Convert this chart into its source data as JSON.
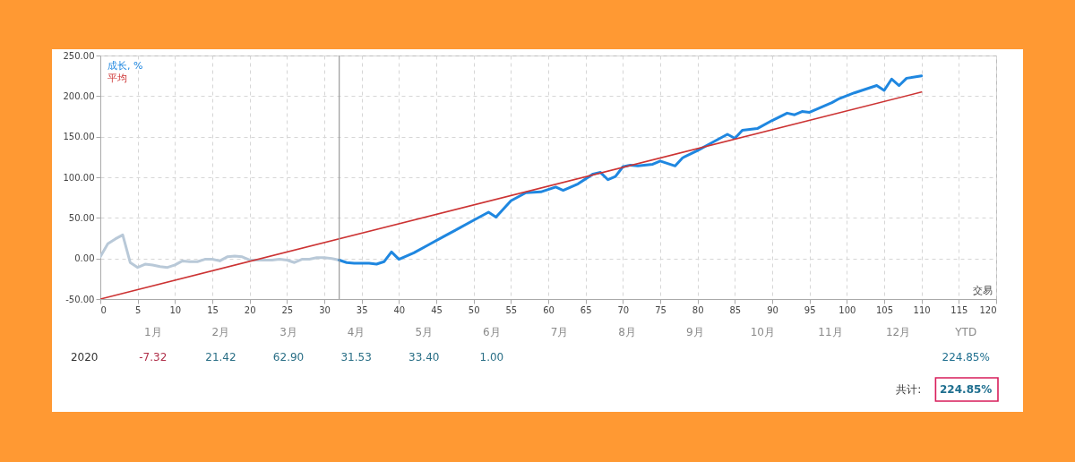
{
  "chart_data": [
    {
      "type": "line",
      "xlabel": "交易",
      "xlim": [
        0,
        120
      ],
      "ylim": [
        -50,
        250
      ],
      "xticks": [
        0,
        5,
        10,
        15,
        20,
        25,
        30,
        35,
        40,
        45,
        50,
        55,
        60,
        65,
        70,
        75,
        80,
        85,
        90,
        95,
        100,
        105,
        110,
        115,
        120
      ],
      "yticks": [
        {
          "value": -50,
          "label": "-50.00"
        },
        {
          "value": 0,
          "label": "0.00"
        },
        {
          "value": 50,
          "label": "50.00"
        },
        {
          "value": 100,
          "label": "100.00"
        },
        {
          "value": 150,
          "label": "150.00"
        },
        {
          "value": 200,
          "label": "200.00"
        },
        {
          "value": 250,
          "label": "250.00"
        }
      ],
      "grid": true,
      "legend": "top left",
      "marker": "none",
      "line_style": "solid",
      "ref_lines": [
        {
          "axis": "x",
          "value": 32,
          "color": "#9a9a9a"
        }
      ],
      "series": [
        {
          "color": "#b9c9d8",
          "x": [
            0,
            1,
            2,
            3,
            4,
            5,
            6,
            7,
            8,
            9,
            10,
            11,
            12,
            13,
            14,
            15,
            16,
            17,
            18,
            19,
            20,
            21,
            22,
            23,
            24,
            25,
            26,
            27,
            28,
            29,
            30,
            31,
            32
          ],
          "values": [
            2,
            18,
            24,
            29,
            -5,
            -11,
            -7,
            -8,
            -10,
            -11,
            -8,
            -3,
            -4,
            -4,
            -1,
            -1,
            -3,
            2,
            3,
            2,
            -2,
            -2,
            -2,
            -2,
            -1,
            -2,
            -5,
            -1,
            -1,
            1,
            1,
            0,
            -2
          ]
        },
        {
          "name": "成长, %",
          "color": "#1f87e0",
          "x": [
            32,
            33,
            34,
            35,
            36,
            37,
            38,
            39,
            40,
            42,
            44,
            46,
            48,
            50,
            52,
            53,
            55,
            57,
            59,
            61,
            62,
            64,
            66,
            67,
            68,
            69,
            70,
            71,
            72,
            74,
            75,
            77,
            78,
            80,
            82,
            84,
            85,
            86,
            88,
            90,
            92,
            93,
            94,
            95,
            98,
            99,
            101,
            104,
            105,
            106,
            107,
            108,
            110
          ],
          "values": [
            -2,
            -5,
            -6,
            -6,
            -6,
            -7,
            -4,
            8,
            -1,
            7,
            17,
            27,
            37,
            47,
            57,
            51,
            71,
            81,
            82,
            88,
            84,
            92,
            104,
            106,
            97,
            101,
            113,
            115,
            114,
            116,
            120,
            114,
            124,
            133,
            143,
            153,
            148,
            158,
            160,
            170,
            179,
            177,
            181,
            180,
            192,
            197,
            204,
            213,
            207,
            221,
            213,
            222,
            225
          ]
        },
        {
          "name": "平均",
          "color": "#cc3333",
          "x": [
            0,
            110
          ],
          "values": [
            -50,
            205
          ]
        }
      ]
    },
    {
      "type": "heatmap",
      "categories": [
        "1月",
        "2月",
        "3月",
        "4月",
        "5月",
        "6月",
        "7月",
        "8月",
        "9月",
        "10月",
        "11月",
        "12月",
        "YTD"
      ],
      "y_categories": [
        "2020"
      ],
      "cells": [
        [
          -7.32,
          21.42,
          62.9,
          31.53,
          33.4,
          1.0,
          null,
          null,
          null,
          null,
          null,
          null,
          224.85
        ]
      ],
      "cell_labels": [
        [
          "-7.32",
          "21.42",
          "62.90",
          "31.53",
          "33.40",
          "1.00",
          null,
          null,
          null,
          null,
          null,
          null,
          "224.85%"
        ]
      ],
      "annotations": [
        "共计:",
        "224.85%"
      ]
    }
  ]
}
